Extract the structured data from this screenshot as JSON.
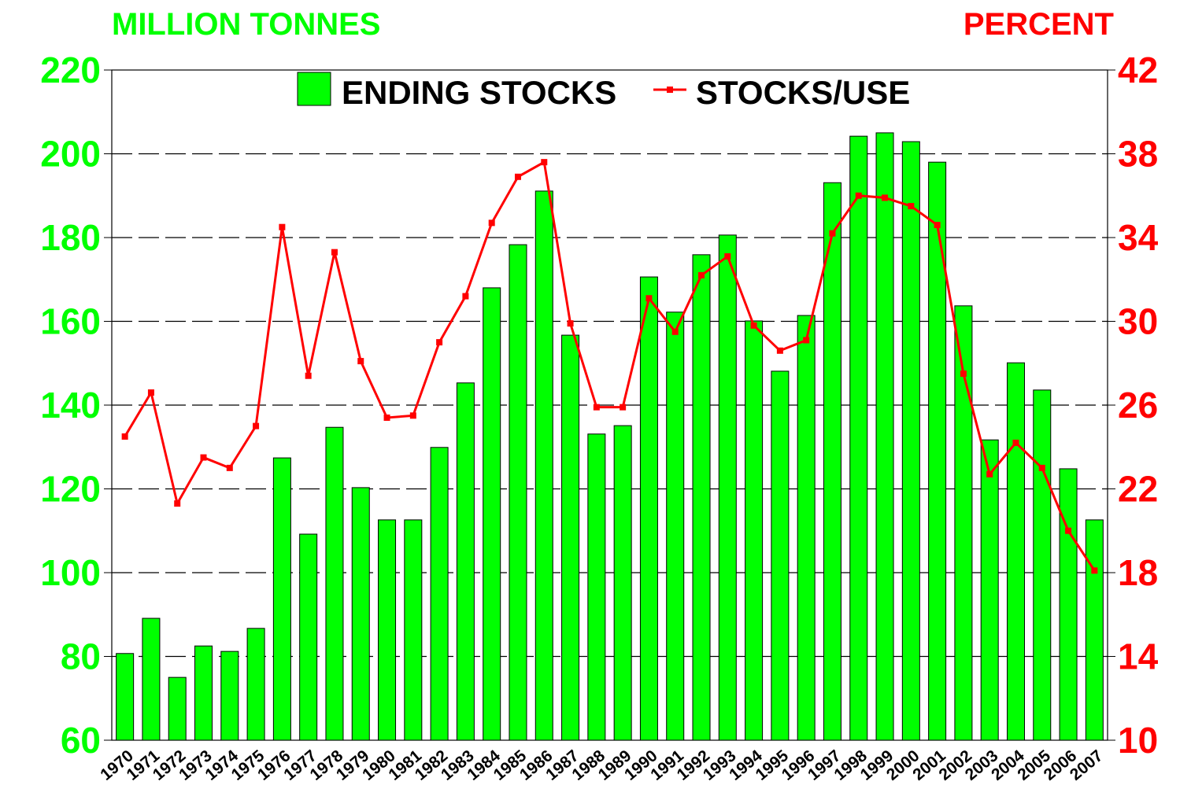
{
  "chart_data": {
    "type": "bar_line",
    "y_label": "MILLION TONNES",
    "y2_label": "PERCENT",
    "categories": [
      "1970",
      "1971",
      "1972",
      "1973",
      "1974",
      "1975",
      "1976",
      "1977",
      "1978",
      "1979",
      "1980",
      "1981",
      "1982",
      "1983",
      "1984",
      "1985",
      "1986",
      "1987",
      "1988",
      "1989",
      "1990",
      "1991",
      "1992",
      "1993",
      "1994",
      "1995",
      "1996",
      "1997",
      "1998",
      "1999",
      "2000",
      "2001",
      "2002",
      "2003",
      "2004",
      "2005",
      "2006",
      "2007"
    ],
    "series": [
      {
        "name": "ENDING STOCKS",
        "color": "#00ff00",
        "type": "bar",
        "axis": "y",
        "values": [
          80.7,
          89.1,
          75.0,
          82.5,
          81.2,
          86.7,
          127.4,
          109.2,
          134.7,
          120.3,
          112.6,
          112.6,
          129.9,
          145.3,
          168.0,
          178.3,
          191.1,
          156.7,
          133.1,
          135.1,
          170.6,
          162.2,
          175.9,
          180.6,
          160.1,
          148.1,
          161.4,
          193.1,
          204.2,
          205.0,
          202.9,
          198.0,
          163.7,
          131.7,
          150.1,
          143.6,
          124.8,
          112.6
        ]
      },
      {
        "name": "STOCKS/USE",
        "color": "#ff0000",
        "type": "line",
        "axis": "y2",
        "values": [
          24.5,
          26.6,
          21.3,
          23.5,
          23.0,
          25.0,
          34.5,
          27.4,
          33.3,
          28.1,
          25.4,
          25.5,
          29.0,
          31.2,
          34.7,
          36.9,
          37.6,
          29.9,
          25.9,
          25.9,
          31.1,
          29.5,
          32.2,
          33.1,
          29.8,
          28.6,
          29.1,
          34.2,
          36.0,
          35.9,
          35.5,
          34.6,
          27.5,
          22.7,
          24.2,
          23.0,
          20.0,
          18.1
        ]
      }
    ],
    "ylim": [
      60,
      220
    ],
    "yticks": [
      60,
      80,
      100,
      120,
      140,
      160,
      180,
      200,
      220
    ],
    "y2lim": [
      10,
      42
    ],
    "y2ticks": [
      10,
      14,
      18,
      22,
      26,
      30,
      34,
      38,
      42
    ],
    "grid": true,
    "legend": "top"
  }
}
